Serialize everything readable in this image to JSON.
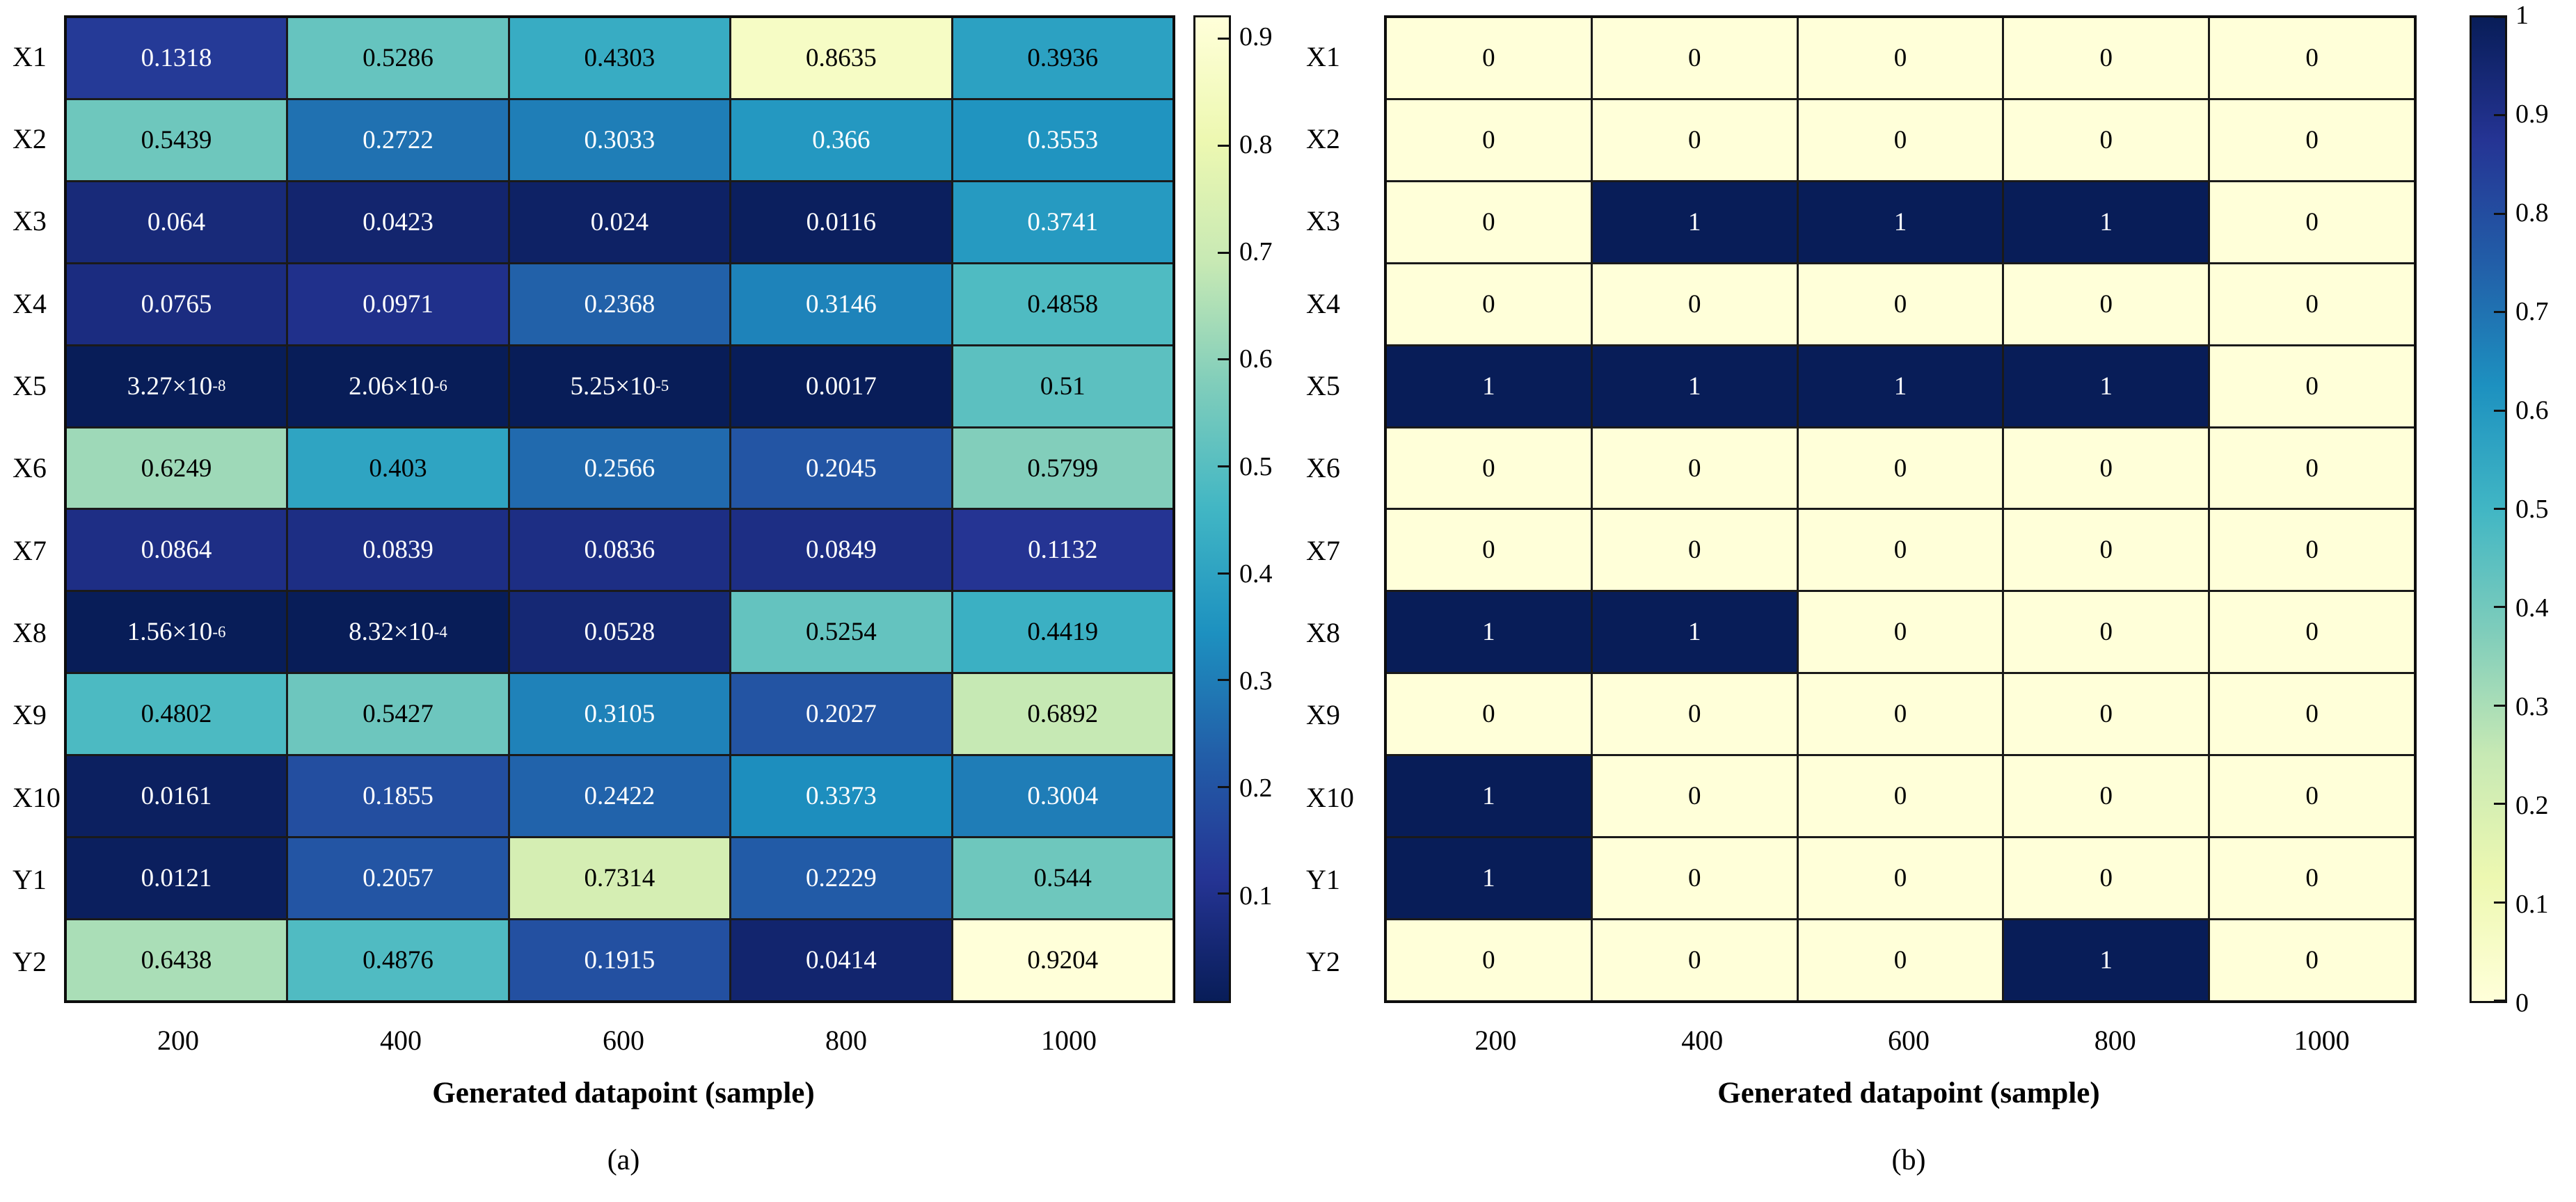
{
  "figure": {
    "xlabel": "Generated datapoint (sample)",
    "colors": {
      "background": "#ffffff",
      "grid_line": "#1a1a1a",
      "outer_border": "#0d0d0d",
      "text_dark": "#000000",
      "text_light": "#ffffff",
      "colormap_name": "YlGnBu",
      "ylgnbu_stops": [
        "#ffffd9",
        "#edf8b1",
        "#c7e9b4",
        "#7fcdbb",
        "#41b6c4",
        "#1d91c0",
        "#225ea8",
        "#253494",
        "#081d58"
      ]
    },
    "text_luminance_threshold": 0.53
  },
  "chart_data": [
    {
      "id": "a",
      "type": "heatmap",
      "caption": "(a)",
      "xlabel": "Generated datapoint (sample)",
      "rows": [
        "X1",
        "X2",
        "X3",
        "X4",
        "X5",
        "X6",
        "X7",
        "X8",
        "X9",
        "X10",
        "Y1",
        "Y2"
      ],
      "columns": [
        "200",
        "400",
        "600",
        "800",
        "1000"
      ],
      "values": [
        [
          0.1318,
          0.5286,
          0.4303,
          0.8635,
          0.3936
        ],
        [
          0.5439,
          0.2722,
          0.3033,
          0.366,
          0.3553
        ],
        [
          0.064,
          0.0423,
          0.024,
          0.0116,
          0.3741
        ],
        [
          0.0765,
          0.0971,
          0.2368,
          0.3146,
          0.4858
        ],
        [
          3.27e-08,
          2.06e-06,
          5.25e-05,
          0.0017,
          0.51
        ],
        [
          0.6249,
          0.403,
          0.2566,
          0.2045,
          0.5799
        ],
        [
          0.0864,
          0.0839,
          0.0836,
          0.0849,
          0.1132
        ],
        [
          1.56e-06,
          0.000832,
          0.0528,
          0.5254,
          0.4419
        ],
        [
          0.4802,
          0.5427,
          0.3105,
          0.2027,
          0.6892
        ],
        [
          0.0161,
          0.1855,
          0.2422,
          0.3373,
          0.3004
        ],
        [
          0.0121,
          0.2057,
          0.7314,
          0.2229,
          0.544
        ],
        [
          0.6438,
          0.4876,
          0.1915,
          0.0414,
          0.9204
        ]
      ],
      "cell_labels": [
        [
          "0.1318",
          "0.5286",
          "0.4303",
          "0.8635",
          "0.3936"
        ],
        [
          "0.5439",
          "0.2722",
          "0.3033",
          "0.366",
          "0.3553"
        ],
        [
          "0.064",
          "0.0423",
          "0.024",
          "0.0116",
          "0.3741"
        ],
        [
          "0.0765",
          "0.0971",
          "0.2368",
          "0.3146",
          "0.4858"
        ],
        [
          "3.27×10^-8",
          "2.06×10^-6",
          "5.25×10^-5",
          "0.0017",
          "0.51"
        ],
        [
          "0.6249",
          "0.403",
          "0.2566",
          "0.2045",
          "0.5799"
        ],
        [
          "0.0864",
          "0.0839",
          "0.0836",
          "0.0849",
          "0.1132"
        ],
        [
          "1.56×10^-6",
          "8.32×10^-4",
          "0.0528",
          "0.5254",
          "0.4419"
        ],
        [
          "0.4802",
          "0.5427",
          "0.3105",
          "0.2027",
          "0.6892"
        ],
        [
          "0.0161",
          "0.1855",
          "0.2422",
          "0.3373",
          "0.3004"
        ],
        [
          "0.0121",
          "0.2057",
          "0.7314",
          "0.2229",
          "0.544"
        ],
        [
          "0.6438",
          "0.4876",
          "0.1915",
          "0.0414",
          "0.9204"
        ]
      ],
      "colormap": "YlGnBu_r",
      "vmin": 0,
      "vmax": 0.9204,
      "colorbar_ticks": [
        "0.9",
        "0.8",
        "0.7",
        "0.6",
        "0.5",
        "0.4",
        "0.3",
        "0.2",
        "0.1"
      ],
      "colorbar_position": "right",
      "grid": true
    },
    {
      "id": "b",
      "type": "heatmap",
      "caption": "(b)",
      "xlabel": "Generated datapoint (sample)",
      "rows": [
        "X1",
        "X2",
        "X3",
        "X4",
        "X5",
        "X6",
        "X7",
        "X8",
        "X9",
        "X10",
        "Y1",
        "Y2"
      ],
      "columns": [
        "200",
        "400",
        "600",
        "800",
        "1000"
      ],
      "values": [
        [
          0,
          0,
          0,
          0,
          0
        ],
        [
          0,
          0,
          0,
          0,
          0
        ],
        [
          0,
          1,
          1,
          1,
          0
        ],
        [
          0,
          0,
          0,
          0,
          0
        ],
        [
          1,
          1,
          1,
          1,
          0
        ],
        [
          0,
          0,
          0,
          0,
          0
        ],
        [
          0,
          0,
          0,
          0,
          0
        ],
        [
          1,
          1,
          0,
          0,
          0
        ],
        [
          0,
          0,
          0,
          0,
          0
        ],
        [
          1,
          0,
          0,
          0,
          0
        ],
        [
          1,
          0,
          0,
          0,
          0
        ],
        [
          0,
          0,
          0,
          1,
          0
        ]
      ],
      "cell_labels": [
        [
          "0",
          "0",
          "0",
          "0",
          "0"
        ],
        [
          "0",
          "0",
          "0",
          "0",
          "0"
        ],
        [
          "0",
          "1",
          "1",
          "1",
          "0"
        ],
        [
          "0",
          "0",
          "0",
          "0",
          "0"
        ],
        [
          "1",
          "1",
          "1",
          "1",
          "0"
        ],
        [
          "0",
          "0",
          "0",
          "0",
          "0"
        ],
        [
          "0",
          "0",
          "0",
          "0",
          "0"
        ],
        [
          "1",
          "1",
          "0",
          "0",
          "0"
        ],
        [
          "0",
          "0",
          "0",
          "0",
          "0"
        ],
        [
          "1",
          "0",
          "0",
          "0",
          "0"
        ],
        [
          "1",
          "0",
          "0",
          "0",
          "0"
        ],
        [
          "0",
          "0",
          "0",
          "1",
          "0"
        ]
      ],
      "colormap": "YlGnBu",
      "vmin": 0,
      "vmax": 1,
      "colorbar_ticks": [
        "1",
        "0.9",
        "0.8",
        "0.7",
        "0.6",
        "0.5",
        "0.4",
        "0.3",
        "0.2",
        "0.1",
        "0"
      ],
      "colorbar_position": "right",
      "grid": true
    }
  ]
}
